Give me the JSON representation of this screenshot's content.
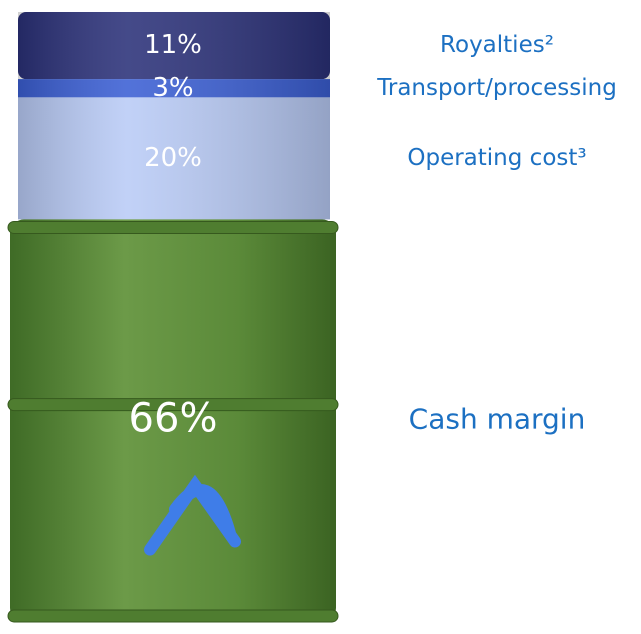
{
  "chart_data": {
    "type": "barrel",
    "categories": [
      "Royalties²",
      "Transport/processing",
      "Operating cost³",
      "Cash margin"
    ],
    "values": [
      11,
      3,
      20,
      66
    ],
    "value_labels": [
      "11%",
      "3%",
      "20%",
      "66%"
    ],
    "colors": [
      "#2b3179",
      "#3b5fd4",
      "#b9cbf6",
      "#5e8c3d"
    ]
  }
}
